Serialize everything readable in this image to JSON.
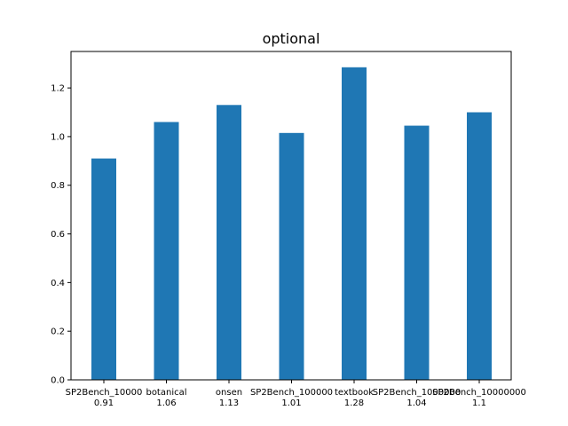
{
  "chart_data": {
    "type": "bar",
    "title": "optional",
    "categories": [
      "SP2Bench_10000",
      "botanical",
      "onsen",
      "SP2Bench_100000",
      "textbook",
      "SP2Bench_1000000",
      "SP2Bench_10000000"
    ],
    "value_labels": [
      "0.91",
      "1.06",
      "1.13",
      "1.01",
      "1.28",
      "1.04",
      "1.1"
    ],
    "values": [
      0.91,
      1.06,
      1.13,
      1.015,
      1.285,
      1.045,
      1.1
    ],
    "ylim": [
      0,
      1.35
    ],
    "yticks": [
      "0.0",
      "0.2",
      "0.4",
      "0.6",
      "0.8",
      "1.0",
      "1.2"
    ],
    "xlabel": "",
    "ylabel": "",
    "grid": false,
    "bar_color": "#1f77b4"
  }
}
